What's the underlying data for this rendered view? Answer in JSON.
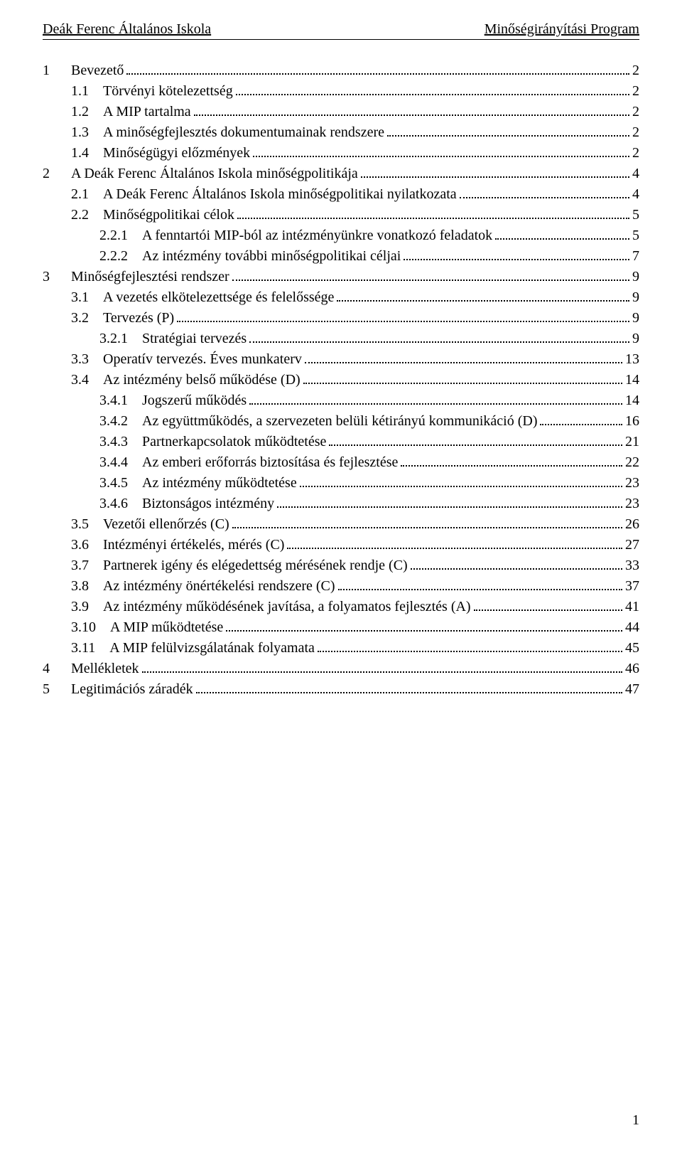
{
  "header": {
    "left": "Deák Ferenc Általános Iskola",
    "right": "Minőségirányítási Program"
  },
  "toc": [
    {
      "indent": 0,
      "num": "1",
      "label": "Bevezető",
      "page": "2"
    },
    {
      "indent": 1,
      "num": "1.1",
      "label": "Törvényi kötelezettség",
      "page": "2"
    },
    {
      "indent": 1,
      "num": "1.2",
      "label": "A MIP tartalma",
      "page": "2"
    },
    {
      "indent": 1,
      "num": "1.3",
      "label": "A minőségfejlesztés dokumentumainak rendszere",
      "page": "2"
    },
    {
      "indent": 1,
      "num": "1.4",
      "label": "Minőségügyi előzmények",
      "page": "2"
    },
    {
      "indent": 0,
      "num": "2",
      "label": "A Deák Ferenc Általános Iskola minőségpolitikája",
      "page": "4"
    },
    {
      "indent": 1,
      "num": "2.1",
      "label": "A Deák Ferenc Általános Iskola minőségpolitikai nyilatkozata",
      "page": "4"
    },
    {
      "indent": 1,
      "num": "2.2",
      "label": "Minőségpolitikai célok",
      "page": "5"
    },
    {
      "indent": 2,
      "num": "2.2.1",
      "label": "A fenntartói MIP-ból az intézményünkre vonatkozó feladatok",
      "page": "5"
    },
    {
      "indent": 2,
      "num": "2.2.2",
      "label": "Az intézmény további minőségpolitikai céljai",
      "page": "7"
    },
    {
      "indent": 0,
      "num": "3",
      "label": "Minőségfejlesztési rendszer",
      "page": "9"
    },
    {
      "indent": 1,
      "num": "3.1",
      "label": "A vezetés elkötelezettsége és felelőssége",
      "page": "9"
    },
    {
      "indent": 1,
      "num": "3.2",
      "label": "Tervezés (P)",
      "page": "9"
    },
    {
      "indent": 2,
      "num": "3.2.1",
      "label": "Stratégiai tervezés",
      "page": "9"
    },
    {
      "indent": 1,
      "num": "3.3",
      "label": "Operatív tervezés. Éves munkaterv",
      "page": "13"
    },
    {
      "indent": 1,
      "num": "3.4",
      "label": "Az intézmény belső működése (D)",
      "page": "14"
    },
    {
      "indent": 2,
      "num": "3.4.1",
      "label": "Jogszerű működés",
      "page": "14"
    },
    {
      "indent": 2,
      "num": "3.4.2",
      "label": "Az együttműködés, a szervezeten belüli kétirányú kommunikáció (D)",
      "page": "16"
    },
    {
      "indent": 2,
      "num": "3.4.3",
      "label": "Partnerkapcsolatok működtetése",
      "page": "21"
    },
    {
      "indent": 2,
      "num": "3.4.4",
      "label": "Az emberi erőforrás biztosítása és fejlesztése",
      "page": "22"
    },
    {
      "indent": 2,
      "num": "3.4.5",
      "label": "Az intézmény működtetése",
      "page": "23"
    },
    {
      "indent": 2,
      "num": "3.4.6",
      "label": "Biztonságos intézmény",
      "page": "23"
    },
    {
      "indent": 1,
      "num": "3.5",
      "label": "Vezetői ellenőrzés (C)",
      "page": "26"
    },
    {
      "indent": 1,
      "num": "3.6",
      "label": "Intézményi értékelés, mérés (C)",
      "page": "27"
    },
    {
      "indent": 1,
      "num": "3.7",
      "label": "Partnerek igény és elégedettség mérésének rendje (C)",
      "page": "33"
    },
    {
      "indent": 1,
      "num": "3.8",
      "label": "Az intézmény önértékelési rendszere (C)",
      "page": "37"
    },
    {
      "indent": 1,
      "num": "3.9",
      "label": "Az intézmény működésének javítása, a folyamatos fejlesztés (A)",
      "page": "41"
    },
    {
      "indent": 1,
      "num": "3.10",
      "label": "A MIP működtetése",
      "page": "44"
    },
    {
      "indent": 1,
      "num": "3.11",
      "label": "A MIP felülvizsgálatának folyamata",
      "page": "45"
    },
    {
      "indent": 0,
      "num": "4",
      "label": "Mellékletek",
      "page": "46"
    },
    {
      "indent": 0,
      "num": "5",
      "label": "Legitimációs záradék",
      "page": "47"
    }
  ],
  "page_number": "1",
  "style": {
    "font_family": "Times New Roman",
    "font_size_pt": 15,
    "text_color": "#000000",
    "background_color": "#ffffff",
    "dot_color": "#000000"
  }
}
